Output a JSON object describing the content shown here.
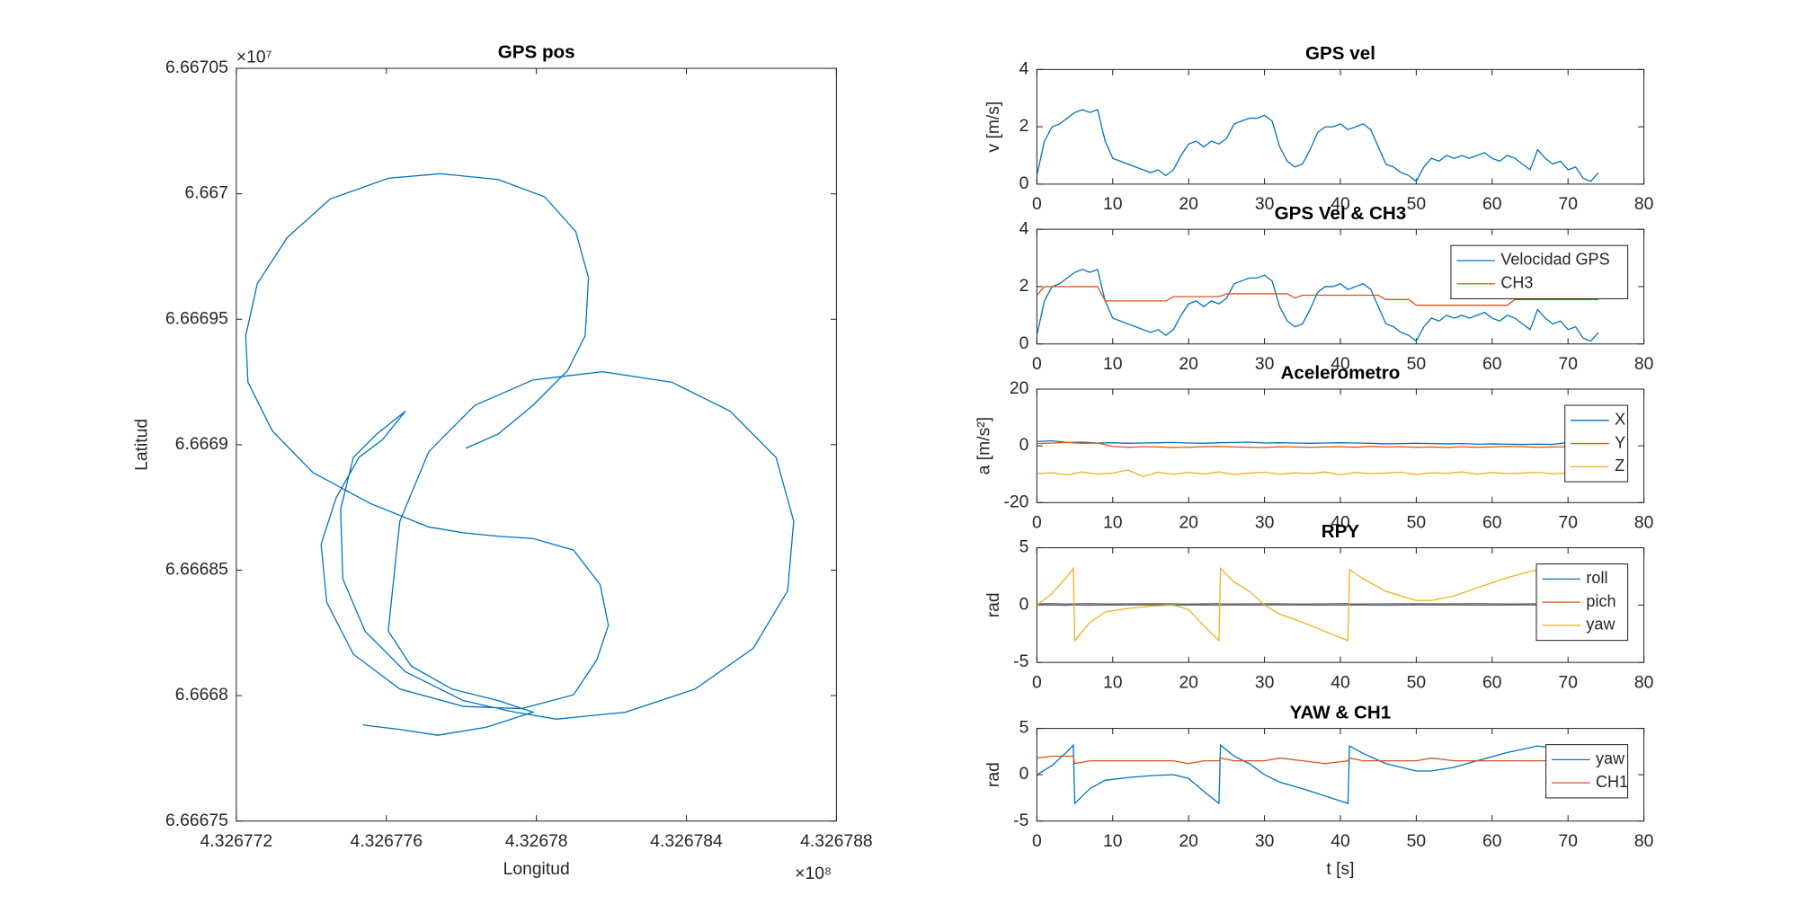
{
  "chart_data": [
    {
      "type": "line",
      "title": "GPS pos",
      "x_label": "Longitud",
      "y_label": "Latitud",
      "x_exponent": "×10⁸",
      "y_exponent": "×10⁷",
      "xlim": [
        432677200,
        432678800
      ],
      "xticks": [
        {
          "value": 432677200,
          "label": "4.326772"
        },
        {
          "value": 432677600,
          "label": "4.326776"
        },
        {
          "value": 432678000,
          "label": "4.32678"
        },
        {
          "value": 432678400,
          "label": "4.326784"
        },
        {
          "value": 432678800,
          "label": "4.326788"
        }
      ],
      "ylim": [
        66667500,
        66670500
      ],
      "yticks": [
        {
          "value": 66667500,
          "label": "6.66675"
        },
        {
          "value": 66668000,
          "label": "6.6668"
        },
        {
          "value": 66668500,
          "label": "6.66685"
        },
        {
          "value": 66669000,
          "label": "6.6669"
        },
        {
          "value": 66669500,
          "label": "6.66695"
        },
        {
          "value": 66670000,
          "label": "6.667"
        },
        {
          "value": 66670500,
          "label": "6.66705"
        }
      ],
      "x": [
        432677537,
        432677636,
        432677737,
        432677867,
        432677991,
        432677898,
        432677775,
        432677666,
        432677605,
        432677626,
        432677636,
        432677713,
        432677836,
        432677991,
        432678176,
        432678361,
        432678516,
        432678639,
        432678686,
        432678670,
        432678578,
        432678423,
        432678238,
        432678053,
        432677929,
        432677805,
        432677651,
        432677543,
        432677484,
        432677478,
        432677512,
        432677574,
        432677651,
        432677589,
        432677527,
        432677466,
        432677426,
        432677441,
        432677512,
        432677636,
        432677805,
        432677960,
        432678099,
        432678161,
        432678192,
        432678170,
        432678099,
        432677991,
        432677898,
        432677805,
        432677713,
        432677558,
        432677404,
        432677296,
        432677231,
        432677225,
        432677256,
        432677336,
        432677450,
        432677605,
        432677744,
        432677898,
        432678022,
        432678105,
        432678139,
        432678130,
        432678083,
        432677991,
        432677898,
        432677812
      ],
      "series": [
        {
          "color": "#0072bd",
          "values": [
            66667883,
            66667865,
            66667842,
            66667874,
            66667934,
            66667980,
            66668026,
            66668118,
            66668257,
            66668557,
            66668695,
            66668972,
            66669157,
            66669258,
            66669291,
            66669249,
            66669134,
            66668949,
            66668695,
            66668418,
            66668188,
            66668026,
            66667934,
            66667906,
            66667938,
            66667980,
            66668095,
            66668257,
            66668465,
            66668742,
            66668949,
            66669042,
            66669134,
            66669019,
            66668949,
            66668788,
            66668603,
            66668372,
            66668165,
            66668026,
            66667957,
            66667948,
            66668003,
            66668142,
            66668280,
            66668442,
            66668580,
            66668626,
            66668635,
            66668649,
            66668672,
            66668765,
            66668889,
            66669055,
            66669249,
            66669434,
            66669642,
            66669826,
            66669979,
            66670062,
            66670080,
            66670057,
            66669988,
            66669849,
            66669665,
            66669434,
            66669295,
            66669157,
            66669042,
            66668986
          ]
        }
      ]
    },
    {
      "type": "line",
      "title": "GPS vel",
      "y_label": "v [m/s]",
      "xlim": [
        0,
        80
      ],
      "xticks": [
        0,
        10,
        20,
        30,
        40,
        50,
        60,
        70,
        80
      ],
      "ylim": [
        0,
        4
      ],
      "yticks": [
        0,
        2,
        4
      ],
      "x": [
        0,
        1,
        2,
        3,
        4,
        5,
        6,
        7,
        8,
        9,
        10,
        11,
        12,
        13,
        14,
        15,
        16,
        17,
        18,
        19,
        20,
        21,
        22,
        23,
        24,
        25,
        26,
        27,
        28,
        29,
        30,
        31,
        32,
        33,
        34,
        35,
        36,
        37,
        38,
        39,
        40,
        41,
        42,
        43,
        44,
        45,
        46,
        47,
        48,
        49,
        50,
        51,
        52,
        53,
        54,
        55,
        56,
        57,
        58,
        59,
        60,
        61,
        62,
        63,
        64,
        65,
        66,
        67,
        68,
        69,
        70,
        71,
        72,
        73,
        74
      ],
      "series": [
        {
          "color": "#0072bd",
          "values": [
            0.3,
            1.5,
            2.0,
            2.1,
            2.3,
            2.5,
            2.6,
            2.5,
            2.6,
            1.5,
            0.9,
            0.8,
            0.7,
            0.6,
            0.5,
            0.4,
            0.5,
            0.3,
            0.5,
            1.0,
            1.4,
            1.5,
            1.3,
            1.5,
            1.4,
            1.6,
            2.1,
            2.2,
            2.3,
            2.3,
            2.4,
            2.2,
            1.3,
            0.8,
            0.6,
            0.7,
            1.2,
            1.8,
            2.0,
            2.0,
            2.1,
            1.9,
            2.0,
            2.1,
            1.9,
            1.3,
            0.7,
            0.6,
            0.4,
            0.3,
            0.1,
            0.6,
            0.9,
            0.8,
            1.0,
            0.9,
            1.0,
            0.9,
            1.0,
            1.1,
            0.9,
            0.8,
            1.0,
            0.9,
            0.7,
            0.5,
            1.2,
            0.9,
            0.7,
            0.8,
            0.5,
            0.6,
            0.2,
            0.1,
            0.4
          ]
        }
      ]
    },
    {
      "type": "line",
      "title": "GPS Vel & CH3",
      "legend": "upper right",
      "xlim": [
        0,
        80
      ],
      "xticks": [
        0,
        10,
        20,
        30,
        40,
        50,
        60,
        70,
        80
      ],
      "ylim": [
        0,
        4
      ],
      "yticks": [
        0,
        2,
        4
      ],
      "x": [
        0,
        1,
        2,
        3,
        4,
        5,
        6,
        7,
        8,
        9,
        10,
        11,
        12,
        13,
        14,
        15,
        16,
        17,
        18,
        19,
        20,
        21,
        22,
        23,
        24,
        25,
        26,
        27,
        28,
        29,
        30,
        31,
        32,
        33,
        34,
        35,
        36,
        37,
        38,
        39,
        40,
        41,
        42,
        43,
        44,
        45,
        46,
        47,
        48,
        49,
        50,
        51,
        52,
        53,
        54,
        55,
        56,
        57,
        58,
        59,
        60,
        61,
        62,
        63,
        64,
        65,
        66,
        67,
        68,
        69,
        70,
        71,
        72,
        73,
        74
      ],
      "series": [
        {
          "name": "Velocidad GPS",
          "color": "#0072bd",
          "values": [
            0.3,
            1.5,
            2.0,
            2.1,
            2.3,
            2.5,
            2.6,
            2.5,
            2.6,
            1.5,
            0.9,
            0.8,
            0.7,
            0.6,
            0.5,
            0.4,
            0.5,
            0.3,
            0.5,
            1.0,
            1.4,
            1.5,
            1.3,
            1.5,
            1.4,
            1.6,
            2.1,
            2.2,
            2.3,
            2.3,
            2.4,
            2.2,
            1.3,
            0.8,
            0.6,
            0.7,
            1.2,
            1.8,
            2.0,
            2.0,
            2.1,
            1.9,
            2.0,
            2.1,
            1.9,
            1.3,
            0.7,
            0.6,
            0.4,
            0.3,
            0.1,
            0.6,
            0.9,
            0.8,
            1.0,
            0.9,
            1.0,
            0.9,
            1.0,
            1.1,
            0.9,
            0.8,
            1.0,
            0.9,
            0.7,
            0.5,
            1.2,
            0.9,
            0.7,
            0.8,
            0.5,
            0.6,
            0.2,
            0.1,
            0.4
          ]
        },
        {
          "name": "CH3",
          "color": "#d95319",
          "values": [
            1.7,
            2.0,
            2.0,
            2.0,
            2.0,
            2.0,
            2.0,
            2.0,
            2.0,
            1.5,
            1.5,
            1.5,
            1.5,
            1.5,
            1.5,
            1.5,
            1.5,
            1.5,
            1.65,
            1.65,
            1.65,
            1.65,
            1.65,
            1.65,
            1.65,
            1.75,
            1.75,
            1.75,
            1.75,
            1.75,
            1.75,
            1.75,
            1.75,
            1.75,
            1.6,
            1.7,
            1.7,
            1.7,
            1.7,
            1.7,
            1.7,
            1.7,
            1.7,
            1.7,
            1.7,
            1.7,
            1.55,
            1.55,
            1.55,
            1.55,
            1.35,
            1.35,
            1.35,
            1.35,
            1.35,
            1.35,
            1.35,
            1.35,
            1.35,
            1.35,
            1.35,
            1.35,
            1.35,
            1.55,
            1.55,
            1.55,
            1.55,
            1.55,
            1.55,
            1.55,
            1.55,
            1.55,
            1.55,
            1.55,
            1.55
          ]
        }
      ]
    },
    {
      "type": "line",
      "title": "Acelerometro",
      "y_label": "a [m/s²]",
      "legend": "upper right",
      "xlim": [
        0,
        80
      ],
      "xticks": [
        0,
        10,
        20,
        30,
        40,
        50,
        60,
        70,
        80
      ],
      "ylim": [
        -20,
        20
      ],
      "yticks": [
        -20,
        0,
        20
      ],
      "x": [
        0,
        2,
        4,
        6,
        8,
        10,
        12,
        14,
        16,
        18,
        20,
        22,
        24,
        26,
        28,
        30,
        32,
        34,
        36,
        38,
        40,
        42,
        44,
        46,
        48,
        50,
        52,
        54,
        56,
        58,
        60,
        62,
        64,
        66,
        68,
        70,
        72,
        74
      ],
      "series": [
        {
          "name": "X",
          "color": "#0072bd",
          "values": [
            1.5,
            1.8,
            1.2,
            1.3,
            1.0,
            1.1,
            0.9,
            1.0,
            1.1,
            1.2,
            1.0,
            0.9,
            1.1,
            1.2,
            1.3,
            1.0,
            1.1,
            1.0,
            0.9,
            1.0,
            1.1,
            1.0,
            0.9,
            0.7,
            0.8,
            0.9,
            0.8,
            0.7,
            0.8,
            0.6,
            0.7,
            0.6,
            0.5,
            0.6,
            0.5,
            1.2,
            0.6,
            0.5
          ]
        },
        {
          "name": "Y",
          "color": "#d95319",
          "values": [
            0.8,
            1.0,
            1.2,
            0.9,
            1.0,
            -0.2,
            -0.5,
            -0.3,
            -0.4,
            -0.6,
            -0.5,
            -0.3,
            -0.2,
            -0.4,
            -0.5,
            -0.6,
            -0.3,
            -0.4,
            -0.5,
            -0.4,
            -0.3,
            -0.5,
            -0.2,
            -0.4,
            -0.3,
            -0.5,
            -0.4,
            -0.6,
            -0.3,
            -0.5,
            -0.4,
            -0.2,
            -0.3,
            -0.5,
            -0.4,
            -0.3,
            -0.5,
            -0.4
          ]
        },
        {
          "name": "Z",
          "color": "#edb120",
          "values": [
            -9.8,
            -9.5,
            -10.2,
            -9.2,
            -10.0,
            -9.6,
            -8.5,
            -10.8,
            -9.3,
            -10.0,
            -9.4,
            -9.9,
            -9.2,
            -10.1,
            -9.6,
            -9.3,
            -10.0,
            -9.5,
            -9.8,
            -9.2,
            -10.2,
            -9.4,
            -9.8,
            -9.6,
            -9.3,
            -10.1,
            -9.5,
            -9.7,
            -9.2,
            -10.0,
            -9.4,
            -9.8,
            -9.6,
            -9.3,
            -9.9,
            -9.5,
            -9.7,
            -9.6
          ]
        }
      ]
    },
    {
      "type": "line",
      "title": "RPY",
      "y_label": "rad",
      "legend": "upper right",
      "xlim": [
        0,
        80
      ],
      "xticks": [
        0,
        10,
        20,
        30,
        40,
        50,
        60,
        70,
        80
      ],
      "ylim": [
        -5,
        5
      ],
      "yticks": [
        -5,
        0,
        5
      ],
      "x": [
        0,
        2,
        4,
        4.8,
        5,
        7,
        9,
        12,
        15,
        18,
        20,
        22,
        24,
        24.2,
        26,
        28,
        30,
        32,
        35,
        38,
        41,
        41.2,
        43,
        46,
        50,
        52,
        55,
        58,
        62,
        66,
        67,
        70,
        74
      ],
      "series": [
        {
          "name": "roll",
          "color": "#0072bd",
          "values": [
            0.1,
            0.12,
            0.08,
            0.1,
            0.1,
            0.12,
            0.09,
            0.1,
            0.11,
            0.1,
            0.08,
            0.1,
            0.12,
            0.1,
            0.09,
            0.1,
            0.11,
            0.1,
            0.08,
            0.1,
            0.12,
            0.1,
            0.09,
            0.1,
            0.11,
            0.1,
            0.1,
            0.12,
            0.09,
            0.1,
            0.1,
            0.11,
            0.1
          ]
        },
        {
          "name": "pich",
          "color": "#d95319",
          "values": [
            0.02,
            0.0,
            -0.03,
            0.01,
            0.0,
            -0.02,
            0.01,
            0.0,
            0.02,
            -0.01,
            0.0,
            0.01,
            -0.02,
            0.0,
            0.01,
            0.0,
            -0.01,
            0.02,
            0.0,
            -0.01,
            0.0,
            0.01,
            0.0,
            -0.02,
            0.01,
            0.0,
            0.01,
            -0.01,
            0.0,
            0.02,
            0.0,
            -0.01,
            0.0
          ]
        },
        {
          "name": "yaw",
          "color": "#edb120",
          "values": [
            0,
            1,
            2.5,
            3.2,
            -3.1,
            -1.5,
            -0.6,
            -0.3,
            -0.1,
            0,
            -0.4,
            -1.8,
            -3.1,
            3.2,
            2,
            1.2,
            0,
            -0.8,
            -1.5,
            -2.3,
            -3.1,
            3.1,
            2.3,
            1.2,
            0.4,
            0.4,
            0.8,
            1.5,
            2.4,
            3.1,
            3.0,
            null,
            null
          ]
        }
      ]
    },
    {
      "type": "line",
      "title": "YAW & CH1",
      "x_label": "t [s]",
      "y_label": "rad",
      "legend": "upper right",
      "xlim": [
        0,
        80
      ],
      "xticks": [
        0,
        10,
        20,
        30,
        40,
        50,
        60,
        70,
        80
      ],
      "ylim": [
        -5,
        5
      ],
      "yticks": [
        -5,
        0,
        5
      ],
      "x": [
        0,
        2,
        4,
        4.8,
        5,
        7,
        9,
        12,
        15,
        18,
        20,
        22,
        24,
        24.2,
        26,
        28,
        30,
        32,
        35,
        38,
        41,
        41.2,
        43,
        46,
        50,
        52,
        55,
        58,
        62,
        66,
        67,
        70,
        74
      ],
      "series": [
        {
          "name": "yaw",
          "color": "#0072bd",
          "values": [
            0,
            1,
            2.5,
            3.2,
            -3.1,
            -1.5,
            -0.6,
            -0.3,
            -0.1,
            0,
            -0.4,
            -1.8,
            -3.1,
            3.2,
            2,
            1.2,
            0,
            -0.8,
            -1.5,
            -2.3,
            -3.1,
            3.1,
            2.3,
            1.2,
            0.4,
            0.4,
            0.8,
            1.5,
            2.4,
            3.1,
            3.0,
            null,
            null
          ]
        },
        {
          "name": "CH1",
          "color": "#d95319",
          "values": [
            1.8,
            2.0,
            2.0,
            2.0,
            1.2,
            1.5,
            1.5,
            1.5,
            1.5,
            1.5,
            1.2,
            1.5,
            1.5,
            1.8,
            1.5,
            1.5,
            1.5,
            1.8,
            1.5,
            1.2,
            1.5,
            1.8,
            1.5,
            1.5,
            1.5,
            1.8,
            1.5,
            1.5,
            1.5,
            1.5,
            1.5,
            1.5,
            1.5
          ]
        }
      ]
    }
  ]
}
